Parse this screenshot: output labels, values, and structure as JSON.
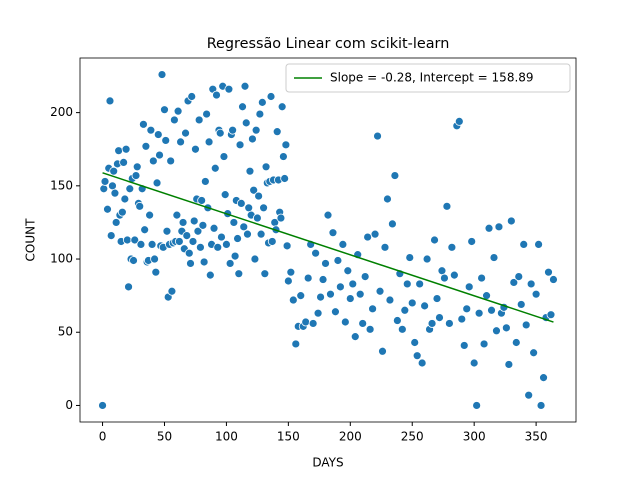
{
  "chart_data": {
    "type": "scatter",
    "title": "Regressão Linear com scikit-learn",
    "x_label": "DAYS",
    "y_label": "COUNT",
    "xlim": [
      -18.2,
      382.2
    ],
    "ylim": [
      -11.3,
      237.3
    ],
    "xticks": [
      0,
      50,
      100,
      150,
      200,
      250,
      300,
      350
    ],
    "yticks": [
      0,
      50,
      100,
      150,
      200
    ],
    "legend": "upper right",
    "series": [
      {
        "type": "scatter",
        "color": "#1f77b4",
        "x": [
          0,
          1,
          2,
          4,
          5,
          6,
          7,
          8,
          9,
          10,
          11,
          12,
          13,
          14,
          15,
          16,
          17,
          18,
          19,
          20,
          21,
          22,
          23,
          24,
          25,
          26,
          27,
          28,
          29,
          30,
          31,
          32,
          33,
          34,
          35,
          36,
          37,
          38,
          39,
          40,
          41,
          42,
          43,
          44,
          45,
          46,
          47,
          48,
          49,
          50,
          51,
          52,
          53,
          54,
          55,
          56,
          57,
          58,
          59,
          60,
          61,
          62,
          63,
          64,
          65,
          66,
          67,
          68,
          69,
          70,
          71,
          72,
          73,
          74,
          75,
          76,
          77,
          78,
          79,
          80,
          81,
          82,
          83,
          84,
          85,
          86,
          87,
          88,
          89,
          90,
          91,
          92,
          93,
          94,
          95,
          96,
          97,
          98,
          99,
          100,
          101,
          102,
          103,
          104,
          105,
          106,
          107,
          108,
          109,
          110,
          111,
          112,
          113,
          114,
          115,
          116,
          117,
          118,
          119,
          120,
          121,
          122,
          123,
          124,
          125,
          126,
          127,
          128,
          129,
          130,
          131,
          132,
          133,
          134,
          135,
          136,
          137,
          138,
          139,
          140,
          141,
          142,
          143,
          144,
          145,
          146,
          147,
          148,
          149,
          150,
          152,
          154,
          156,
          158,
          160,
          162,
          164,
          166,
          168,
          170,
          172,
          174,
          176,
          178,
          180,
          182,
          184,
          186,
          188,
          190,
          192,
          194,
          196,
          198,
          200,
          202,
          204,
          206,
          208,
          210,
          212,
          214,
          216,
          218,
          220,
          222,
          224,
          226,
          228,
          230,
          232,
          234,
          236,
          238,
          240,
          242,
          244,
          246,
          248,
          250,
          252,
          254,
          256,
          258,
          260,
          262,
          264,
          266,
          268,
          270,
          272,
          274,
          276,
          278,
          280,
          282,
          284,
          286,
          288,
          290,
          292,
          294,
          296,
          298,
          300,
          302,
          304,
          306,
          308,
          310,
          312,
          314,
          316,
          318,
          320,
          322,
          324,
          326,
          328,
          330,
          332,
          334,
          336,
          338,
          340,
          342,
          344,
          346,
          348,
          350,
          352,
          354,
          356,
          358,
          360,
          362,
          364
        ],
        "values": [
          0,
          148,
          153,
          134,
          162,
          208,
          116,
          150,
          160,
          145,
          125,
          165,
          174,
          130,
          112,
          132,
          166,
          141,
          175,
          113,
          81,
          148,
          100,
          155,
          99,
          113,
          157,
          163,
          138,
          136,
          110,
          148,
          192,
          120,
          177,
          98,
          99,
          130,
          188,
          110,
          167,
          100,
          91,
          152,
          185,
          171,
          109,
          226,
          108,
          202,
          181,
          119,
          74,
          110,
          167,
          78,
          111,
          195,
          112,
          130,
          201,
          112,
          180,
          119,
          125,
          107,
          186,
          116,
          208,
          104,
          97,
          211,
          112,
          126,
          175,
          141,
          119,
          195,
          108,
          140,
          123,
          98,
          153,
          199,
          135,
          180,
          89,
          110,
          216,
          121,
          162,
          212,
          108,
          188,
          186,
          115,
          218,
          170,
          144,
          110,
          131,
          216,
          97,
          185,
          188,
          125,
          102,
          140,
          114,
          90,
          178,
          138,
          204,
          122,
          218,
          193,
          117,
          135,
          160,
          130,
          182,
          147,
          100,
          188,
          128,
          143,
          199,
          117,
          207,
          135,
          90,
          163,
          152,
          111,
          153,
          211,
          112,
          154,
          125,
          120,
          187,
          154,
          132,
          128,
          204,
          170,
          155,
          178,
          109,
          85,
          91,
          72,
          42,
          54,
          75,
          54,
          57,
          87,
          110,
          56,
          104,
          63,
          74,
          86,
          97,
          130,
          76,
          118,
          64,
          99,
          81,
          110,
          57,
          92,
          73,
          83,
          47,
          103,
          76,
          56,
          88,
          115,
          52,
          66,
          117,
          184,
          78,
          37,
          108,
          141,
          72,
          124,
          157,
          58,
          90,
          52,
          65,
          83,
          101,
          70,
          43,
          34,
          83,
          29,
          68,
          100,
          52,
          56,
          113,
          73,
          60,
          92,
          87,
          136,
          56,
          108,
          89,
          191,
          194,
          59,
          41,
          66,
          81,
          112,
          29,
          0,
          63,
          87,
          42,
          75,
          121,
          65,
          101,
          51,
          122,
          63,
          67,
          53,
          28,
          126,
          84,
          43,
          88,
          69,
          110,
          55,
          7,
          83,
          36,
          76,
          110,
          0,
          19,
          60,
          91,
          62,
          86
        ]
      },
      {
        "type": "line",
        "name": "Slope = -0.28, Intercept = 158.89",
        "color": "#008000",
        "x": [
          0,
          364
        ],
        "values": [
          158.89,
          56.97
        ]
      }
    ]
  }
}
